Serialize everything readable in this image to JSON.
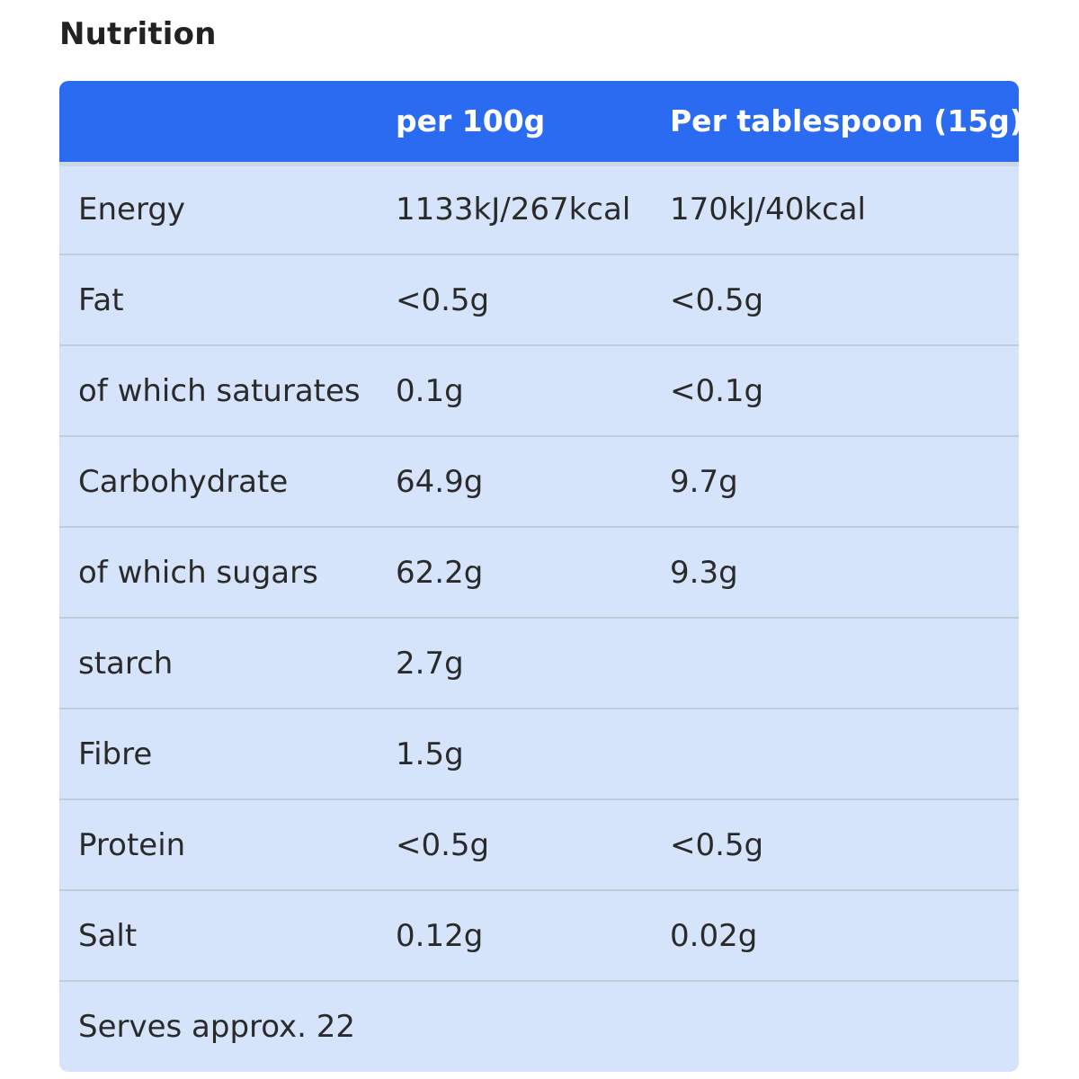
{
  "title": "Nutrition",
  "columns": [
    "",
    "per 100g",
    "Per tablespoon (15g)"
  ],
  "rows": [
    {
      "label": "Energy",
      "per_100g": "1133kJ/267kcal",
      "per_tbsp": "170kJ/40kcal"
    },
    {
      "label": "Fat",
      "per_100g": "<0.5g",
      "per_tbsp": "<0.5g"
    },
    {
      "label": "of which saturates",
      "per_100g": "0.1g",
      "per_tbsp": "<0.1g"
    },
    {
      "label": "Carbohydrate",
      "per_100g": "64.9g",
      "per_tbsp": "9.7g"
    },
    {
      "label": "of which sugars",
      "per_100g": "62.2g",
      "per_tbsp": "9.3g"
    },
    {
      "label": "starch",
      "per_100g": "2.7g",
      "per_tbsp": ""
    },
    {
      "label": "Fibre",
      "per_100g": "1.5g",
      "per_tbsp": ""
    },
    {
      "label": "Protein",
      "per_100g": "<0.5g",
      "per_tbsp": "<0.5g"
    },
    {
      "label": "Salt",
      "per_100g": "0.12g",
      "per_tbsp": "0.02g"
    },
    {
      "label": "Serves approx. 22",
      "per_100g": "",
      "per_tbsp": ""
    }
  ],
  "colors": {
    "header_bg": "#2b6bf2",
    "row_bg": "#d6e4fb",
    "header_text": "#ffffff"
  }
}
